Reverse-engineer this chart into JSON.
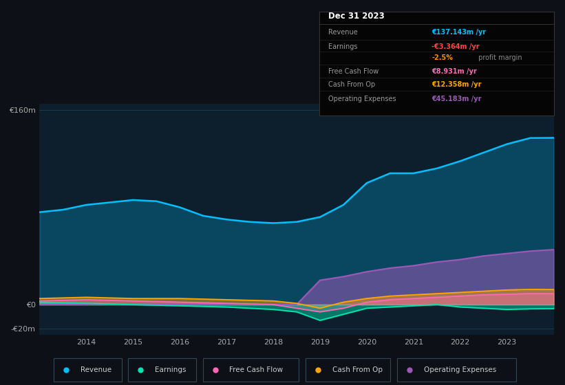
{
  "bg_color": "#0d1117",
  "plot_bg_color": "#0d1f2d",
  "grid_color": "#1e3a4a",
  "years": [
    2013.0,
    2013.5,
    2014.0,
    2014.5,
    2015.0,
    2015.5,
    2016.0,
    2016.5,
    2017.0,
    2017.5,
    2018.0,
    2018.5,
    2019.0,
    2019.5,
    2020.0,
    2020.5,
    2021.0,
    2021.5,
    2022.0,
    2022.5,
    2023.0,
    2023.5,
    2024.0
  ],
  "revenue": [
    76,
    78,
    82,
    84,
    86,
    85,
    80,
    73,
    70,
    68,
    67,
    68,
    72,
    82,
    100,
    108,
    108,
    112,
    118,
    125,
    132,
    137,
    137.143
  ],
  "earnings": [
    2,
    1.5,
    1,
    0.5,
    0,
    -0.5,
    -1,
    -1.5,
    -2,
    -3,
    -4,
    -6,
    -13,
    -8,
    -3,
    -2,
    -1,
    0,
    -2,
    -3,
    -4,
    -3.5,
    -3.364
  ],
  "free_cash_flow": [
    3,
    3.5,
    4,
    3.5,
    3,
    2.5,
    2,
    1.5,
    1,
    0.5,
    0,
    -3,
    -6,
    -3,
    2,
    4,
    5,
    6,
    7,
    8,
    8.5,
    9,
    8.931
  ],
  "cash_from_op": [
    5,
    5.5,
    6,
    5.5,
    5,
    5,
    5,
    4.5,
    4,
    3.5,
    3,
    1,
    -3,
    2,
    5,
    7,
    8,
    9,
    10,
    11,
    12,
    12.5,
    12.358
  ],
  "operating_expenses": [
    0,
    0,
    0,
    0,
    0,
    0,
    0,
    0,
    0,
    0,
    0,
    0,
    20,
    23,
    27,
    30,
    32,
    35,
    37,
    40,
    42,
    44,
    45.183
  ],
  "revenue_color": "#00bfff",
  "earnings_color": "#00e5b0",
  "free_cash_flow_color": "#ff69b4",
  "cash_from_op_color": "#ffa500",
  "operating_expenses_color": "#9b59b6",
  "ylim": [
    -25,
    165
  ],
  "yticks": [
    -20,
    0,
    160
  ],
  "ytick_labels": [
    "-€20m",
    "€0",
    "€160m"
  ],
  "xtick_years": [
    2014,
    2015,
    2016,
    2017,
    2018,
    2019,
    2020,
    2021,
    2022,
    2023
  ],
  "tooltip": {
    "title": "Dec 31 2023",
    "rows": [
      {
        "label": "Revenue",
        "value": "€137.143m /yr",
        "value_color": "#00bfff"
      },
      {
        "label": "Earnings",
        "value": "-€3.364m /yr",
        "value_color": "#ff4444"
      },
      {
        "label": "",
        "value": "-2.5%",
        "value_color": "#ff8c00",
        "suffix": " profit margin",
        "suffix_color": "#888888"
      },
      {
        "label": "Free Cash Flow",
        "value": "€8.931m /yr",
        "value_color": "#ff69b4"
      },
      {
        "label": "Cash From Op",
        "value": "€12.358m /yr",
        "value_color": "#ffa500"
      },
      {
        "label": "Operating Expenses",
        "value": "€45.183m /yr",
        "value_color": "#9b59b6"
      }
    ]
  },
  "legend": [
    {
      "label": "Revenue",
      "color": "#00bfff"
    },
    {
      "label": "Earnings",
      "color": "#00e5b0"
    },
    {
      "label": "Free Cash Flow",
      "color": "#ff69b4"
    },
    {
      "label": "Cash From Op",
      "color": "#ffa500"
    },
    {
      "label": "Operating Expenses",
      "color": "#9b59b6"
    }
  ]
}
